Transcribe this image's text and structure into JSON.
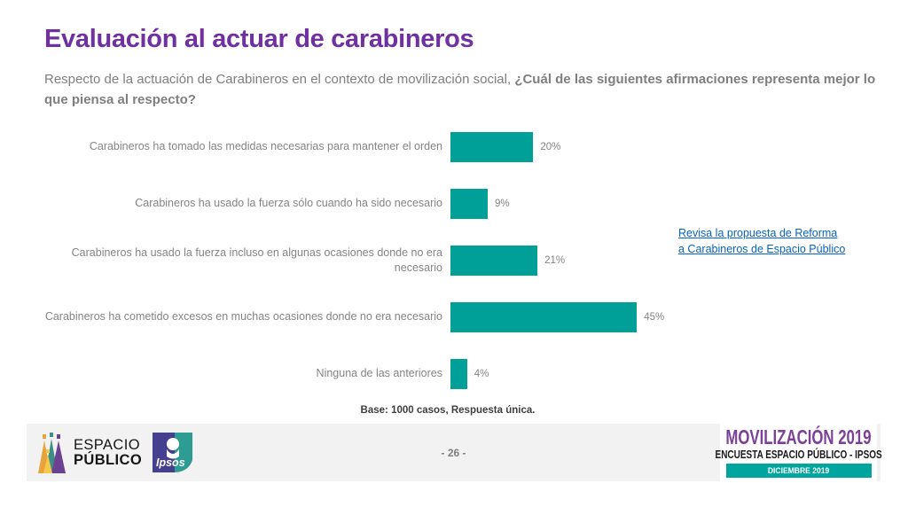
{
  "slide": {
    "title": "Evaluación al actuar de carabineros",
    "subtitle_regular": "Respecto de la actuación de Carabineros en el contexto de movilización social, ",
    "subtitle_bold": "¿Cuál de las siguientes afirmaciones representa mejor lo que piensa al respecto?",
    "base_note": "Base: 1000 casos, Respuesta única.",
    "page_number": "- 26 -"
  },
  "chart_data": {
    "type": "bar",
    "orientation": "horizontal",
    "categories": [
      "Carabineros ha tomado las medidas necesarias para mantener el orden",
      "Carabineros ha usado la fuerza sólo cuando ha sido necesario",
      "Carabineros ha usado la fuerza incluso en algunas ocasiones donde no era necesario",
      "Carabineros ha cometido excesos en muchas ocasiones donde no era necesario",
      "Ninguna de las anteriores"
    ],
    "values": [
      20,
      9,
      21,
      45,
      4
    ],
    "value_suffix": "%",
    "xlim": [
      0,
      50
    ],
    "bar_color": "#00A099",
    "grid": false,
    "legend": false
  },
  "link": {
    "lines": [
      "Revisa la propuesta de Reforma",
      "a Carabineros de Espacio Público"
    ],
    "color": "#0563C1"
  },
  "footer": {
    "espacio_publico_logo": {
      "line1": "ESPACIO",
      "line2": "PÚBLICO"
    },
    "ipsos_logo_text": "Ipsos",
    "brand_title": "MOVILIZACIÓN 2019",
    "brand_subtitle": "ENCUESTA ESPACIO PÚBLICO - IPSOS",
    "brand_date": "DICIEMBRE 2019",
    "colors": {
      "accent_teal": "#00A59D",
      "brand_purple": "#7D3F98",
      "title_purple": "#7030A0"
    }
  },
  "icons": {
    "espacio-publico-logo": "abstract-people-triangles",
    "ipsos-logo": "two-tone-square-face-profile"
  }
}
